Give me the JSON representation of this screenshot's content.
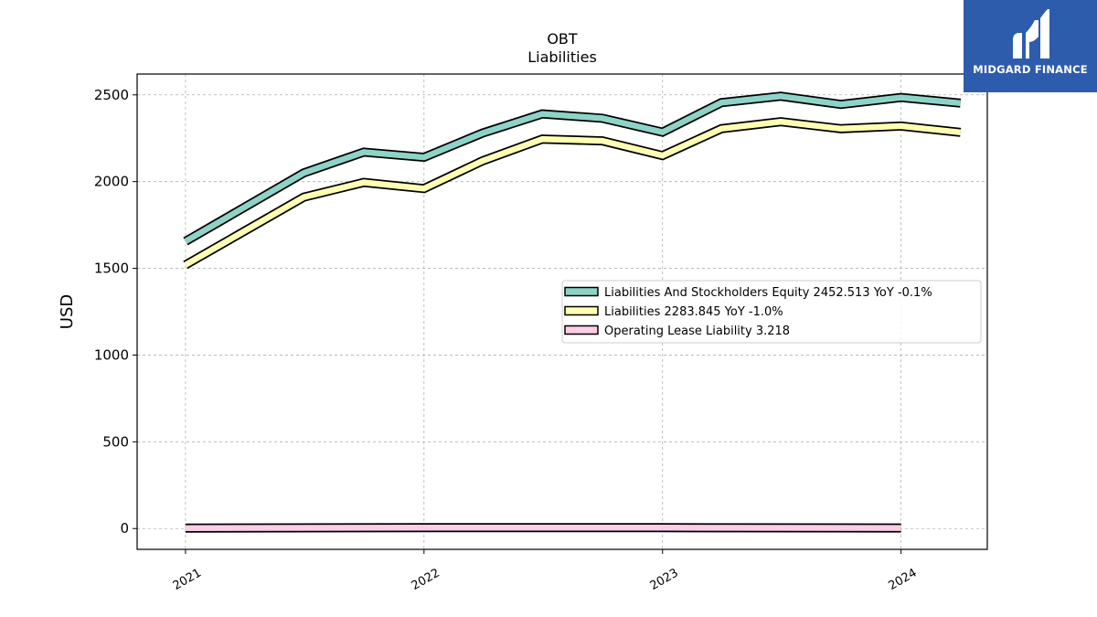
{
  "brand": {
    "name": "MIDGARD FINANCE",
    "bg_color": "#2d5cad"
  },
  "chart_data": {
    "type": "line",
    "title": "OBT",
    "subtitle": "Liabilities",
    "ylabel": "USD",
    "xlabel": "",
    "ylim": [
      -120,
      2620
    ],
    "xlim": [
      "2020-10-19",
      "2024-05-12"
    ],
    "x_ticks": [
      {
        "date": "2021-01-01",
        "label": "2021"
      },
      {
        "date": "2022-01-01",
        "label": "2022"
      },
      {
        "date": "2023-01-01",
        "label": "2023"
      },
      {
        "date": "2024-01-01",
        "label": "2024"
      }
    ],
    "y_ticks": [
      0,
      500,
      1000,
      1500,
      2000,
      2500
    ],
    "grid": true,
    "legend_position": "center-right",
    "series": [
      {
        "name": "Liabilities And Stockholders Equity",
        "legend_label": "Liabilities And Stockholders Equity  2452.513 YoY -0.1%",
        "color": "#8dd3c7",
        "points": [
          [
            "2021-01-01",
            1655
          ],
          [
            "2021-07-01",
            2050
          ],
          [
            "2021-10-01",
            2170
          ],
          [
            "2022-01-01",
            2140
          ],
          [
            "2022-04-01",
            2280
          ],
          [
            "2022-07-01",
            2390
          ],
          [
            "2022-10-01",
            2365
          ],
          [
            "2023-01-01",
            2285
          ],
          [
            "2023-04-01",
            2455
          ],
          [
            "2023-07-01",
            2492
          ],
          [
            "2023-10-01",
            2445
          ],
          [
            "2024-01-01",
            2485
          ],
          [
            "2024-04-01",
            2452.513
          ]
        ]
      },
      {
        "name": "Liabilities",
        "legend_label": "Liabilities  2283.845 YoY -1.0%",
        "color": "#ffffb3",
        "points": [
          [
            "2021-01-01",
            1520
          ],
          [
            "2021-07-01",
            1910
          ],
          [
            "2021-10-01",
            1995
          ],
          [
            "2022-01-01",
            1960
          ],
          [
            "2022-04-01",
            2120
          ],
          [
            "2022-07-01",
            2245
          ],
          [
            "2022-10-01",
            2235
          ],
          [
            "2023-01-01",
            2150
          ],
          [
            "2023-04-01",
            2305
          ],
          [
            "2023-07-01",
            2345
          ],
          [
            "2023-10-01",
            2305
          ],
          [
            "2024-01-01",
            2320
          ],
          [
            "2024-04-01",
            2283.845
          ]
        ]
      },
      {
        "name": "Operating Lease Liability",
        "legend_label": "Operating Lease Liability  3.218",
        "color": "#fccde5",
        "points": [
          [
            "2021-01-01",
            3
          ],
          [
            "2022-01-01",
            5
          ],
          [
            "2023-01-01",
            5
          ],
          [
            "2024-01-01",
            3.218
          ]
        ]
      }
    ]
  }
}
